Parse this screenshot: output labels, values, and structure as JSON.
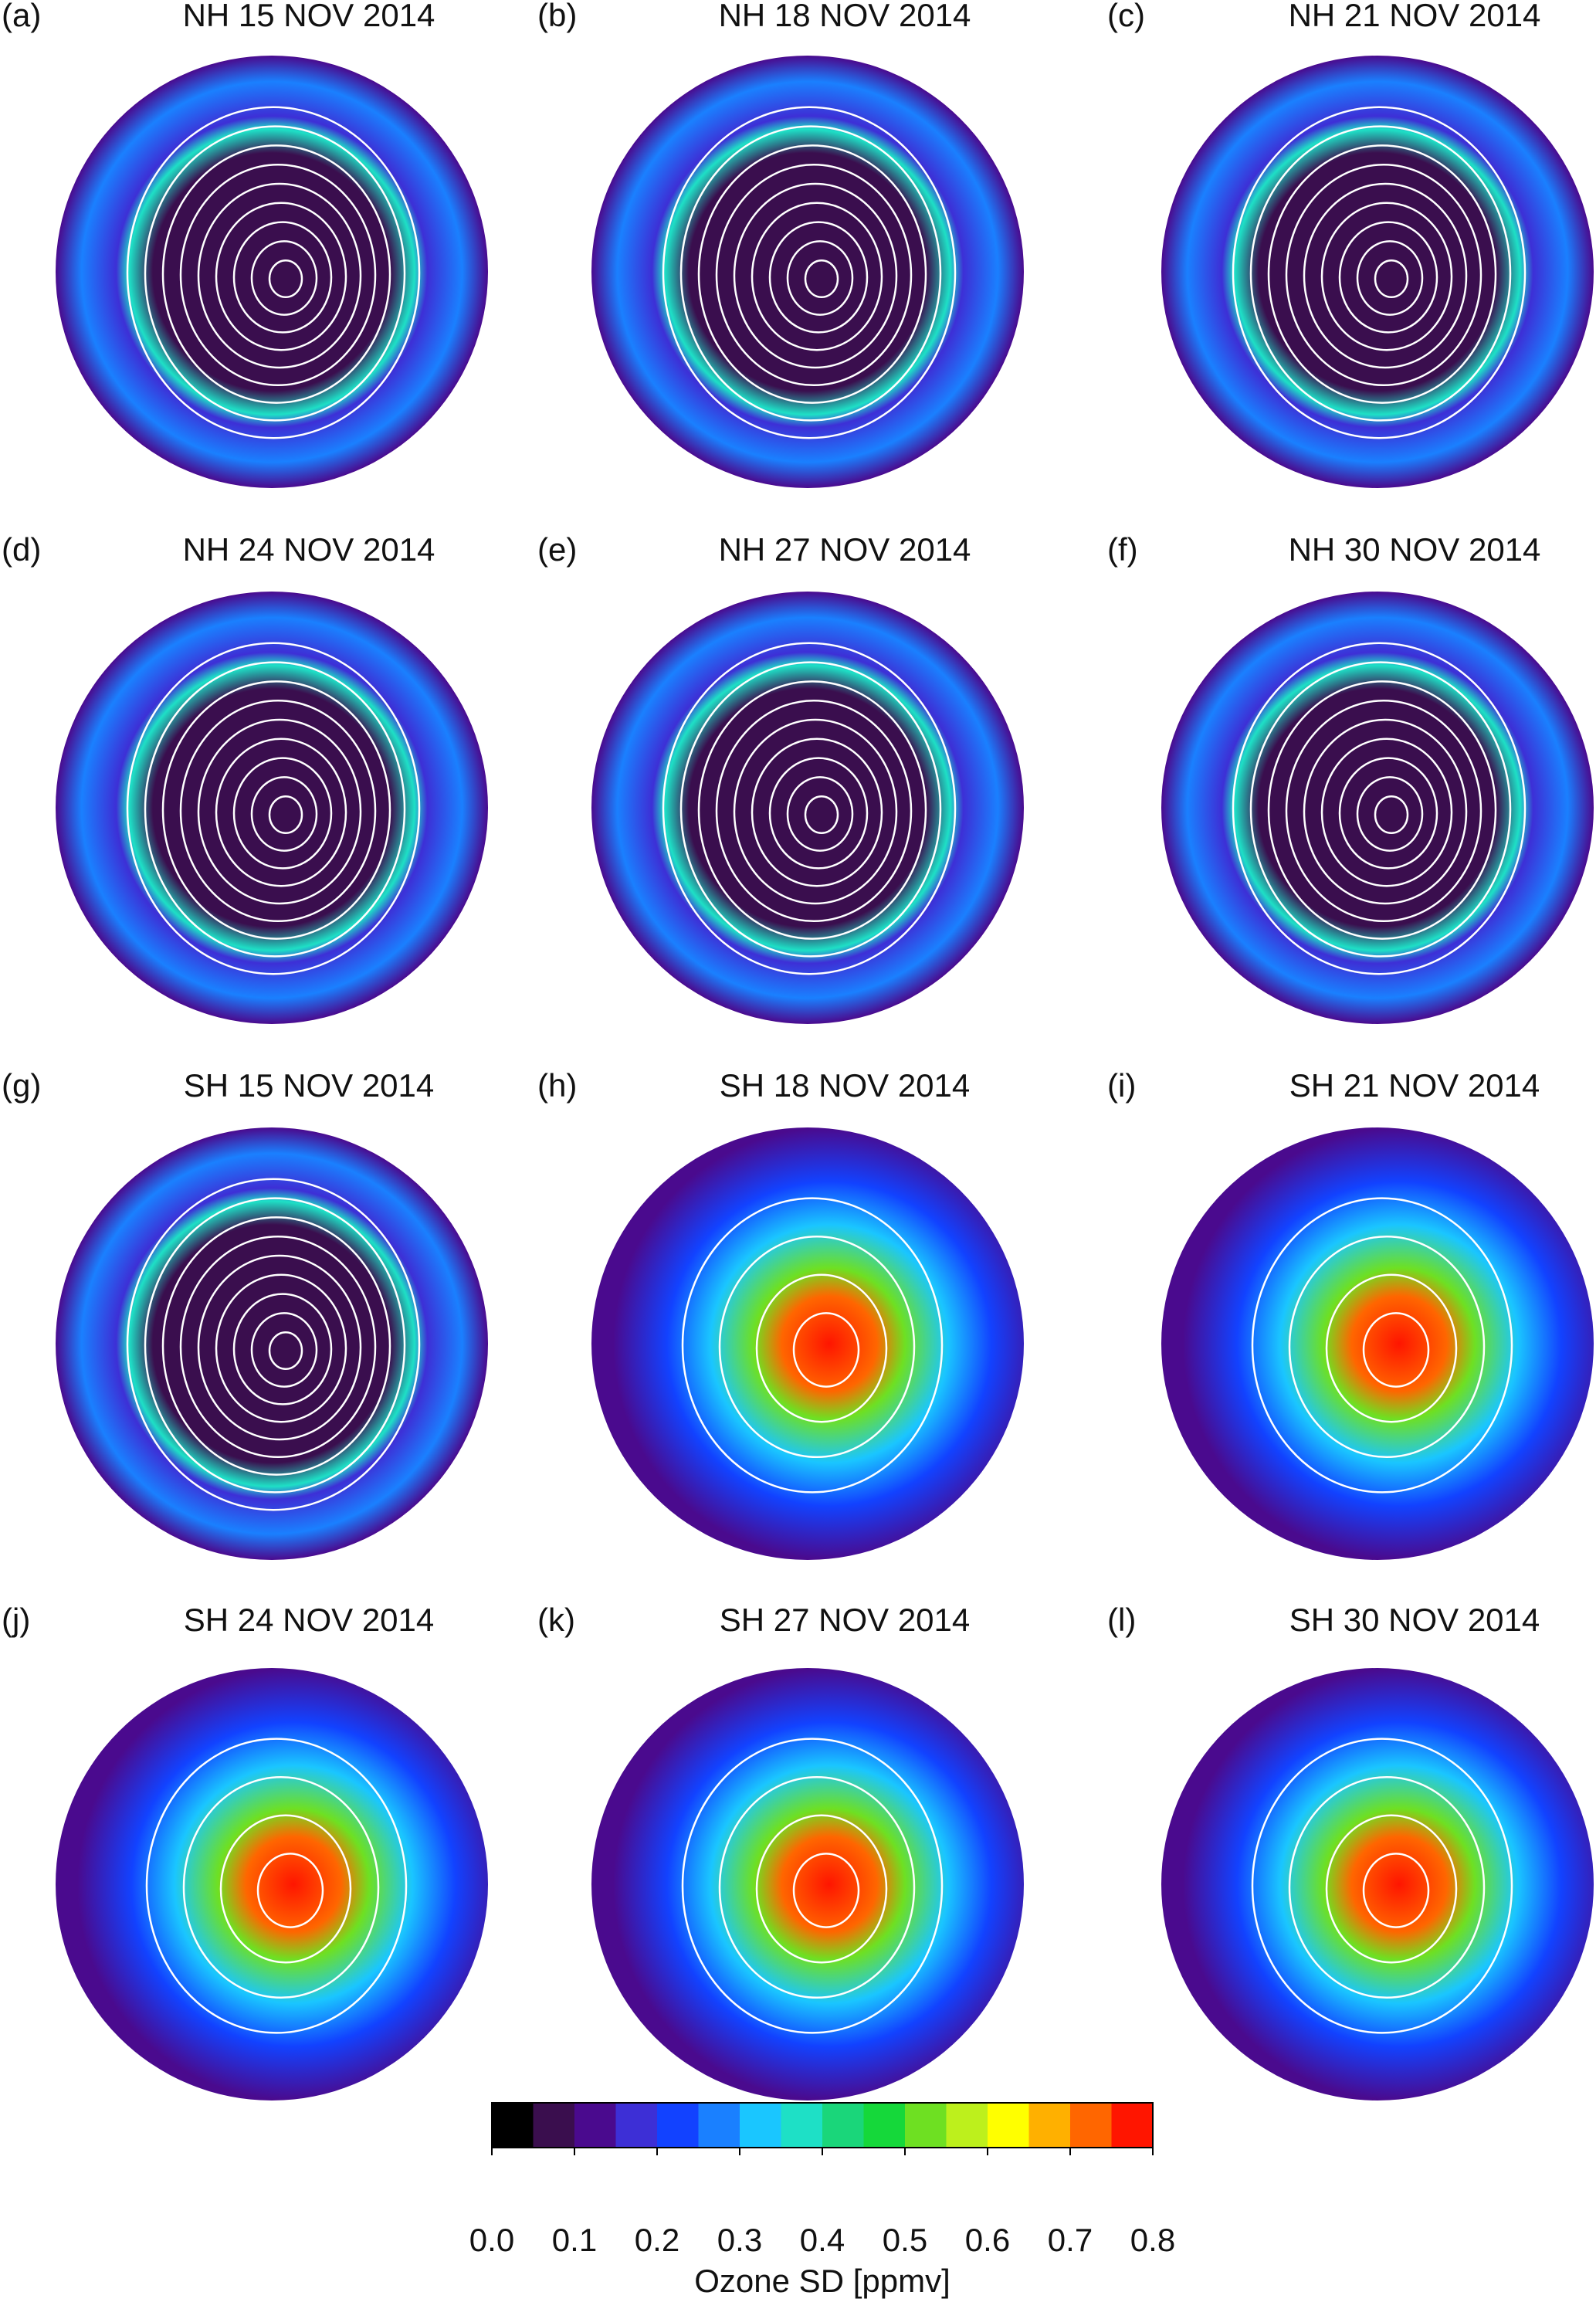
{
  "panels": [
    {
      "label": "(a)",
      "title": "NH 15 NOV 2014"
    },
    {
      "label": "(b)",
      "title": "NH 18 NOV 2014"
    },
    {
      "label": "(c)",
      "title": "NH 21 NOV 2014"
    },
    {
      "label": "(d)",
      "title": "NH 24 NOV 2014"
    },
    {
      "label": "(e)",
      "title": "NH 27 NOV 2014"
    },
    {
      "label": "(f)",
      "title": "NH 30 NOV 2014"
    },
    {
      "label": "(g)",
      "title": "SH 15 NOV 2014"
    },
    {
      "label": "(h)",
      "title": "SH 18 NOV 2014"
    },
    {
      "label": "(i)",
      "title": "SH 21 NOV 2014"
    },
    {
      "label": "(j)",
      "title": "SH 24 NOV 2014"
    },
    {
      "label": "(k)",
      "title": "SH 27 NOV 2014"
    },
    {
      "label": "(l)",
      "title": "SH 30 NOV 2014"
    }
  ],
  "colorbar": {
    "label": "Ozone SD [ppmv]",
    "lim": [
      0,
      0.8
    ],
    "ticks": [
      {
        "value": 0,
        "label": "0.0"
      },
      0.1,
      0.2,
      0.3,
      0.4,
      0.5,
      0.6,
      0.7,
      0.8
    ],
    "colors": [
      "#000000",
      "#3a0e4e",
      "#4a0a8e",
      "#3d2fd6",
      "#1242ff",
      "#1a80ff",
      "#1ac6ff",
      "#1ee0c6",
      "#1ad67a",
      "#15d83a",
      "#6ee022",
      "#bdf01c",
      "#ffff00",
      "#ffb000",
      "#ff6600",
      "#ff1500"
    ]
  }
}
